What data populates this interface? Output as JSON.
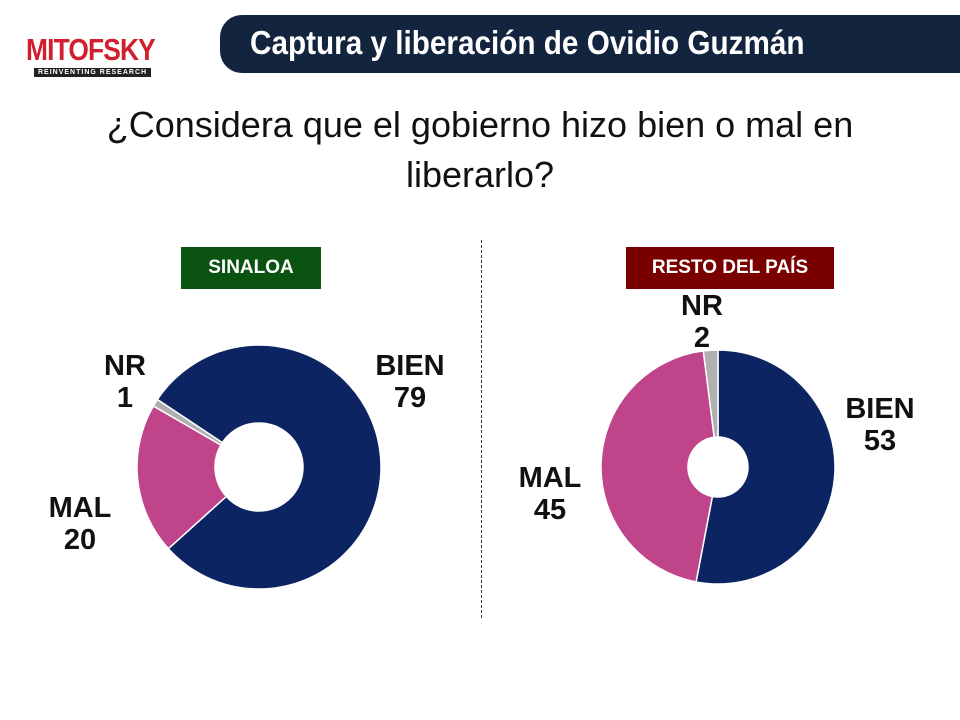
{
  "header": {
    "logo_text": "MITOFSKY",
    "logo_subtitle": "REINVENTING RESEARCH",
    "title": "Captura y liberación de Ovidio Guzmán"
  },
  "question": "¿Considera que el gobierno hizo bien o mal en liberarlo?",
  "colors": {
    "BIEN": "#0c2461",
    "MAL": "#c0448a",
    "NR": "#b0b0b0",
    "sinaloa_tag": "#0b5311",
    "resto_tag": "#7a0000",
    "banner": "#13243f"
  },
  "chart_data": [
    {
      "type": "pie",
      "variant": "donut",
      "title": "SINALOA",
      "categories": [
        "BIEN",
        "MAL",
        "NR"
      ],
      "values": [
        79,
        20,
        1
      ],
      "labels": {
        "BIEN": "BIEN",
        "MAL": "MAL",
        "NR": "NR"
      }
    },
    {
      "type": "pie",
      "variant": "donut",
      "title": "RESTO DEL PAÍS",
      "categories": [
        "BIEN",
        "MAL",
        "NR"
      ],
      "values": [
        53,
        45,
        2
      ],
      "labels": {
        "BIEN": "BIEN",
        "MAL": "MAL",
        "NR": "NR"
      }
    }
  ]
}
